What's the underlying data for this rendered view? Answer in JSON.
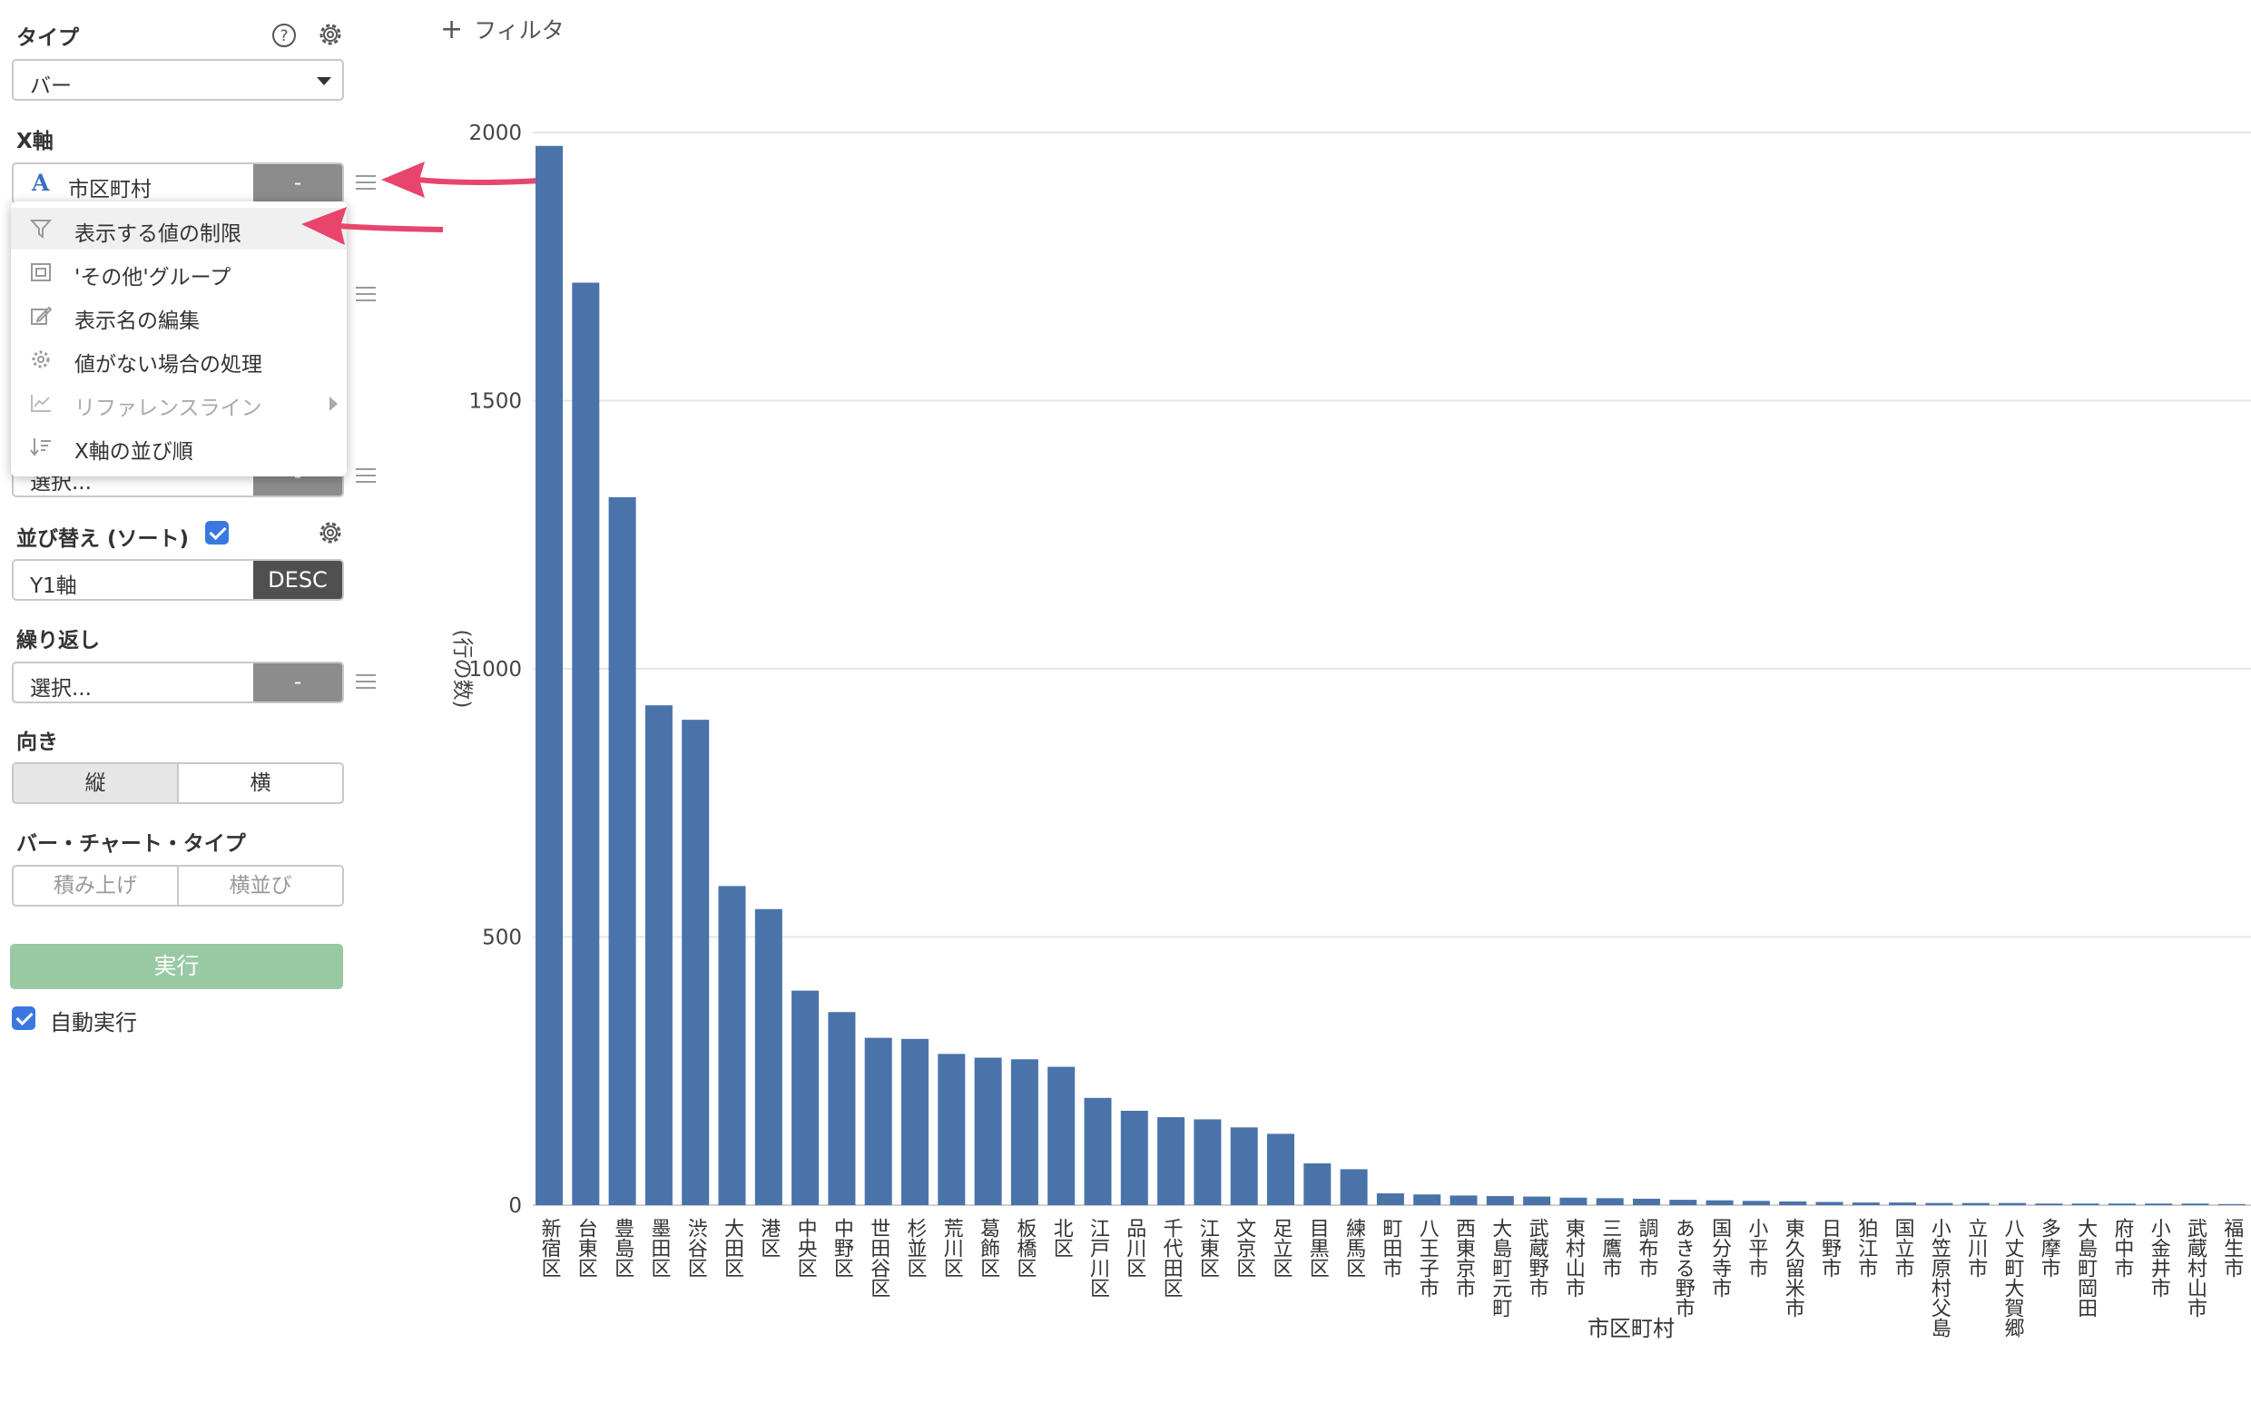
{
  "sidebar": {
    "type_section": {
      "title": "タイプ",
      "selected": "バー"
    },
    "xaxis_section": {
      "title": "X軸",
      "field_value": "市区町村",
      "field_type_glyph": "A",
      "field_option": "-"
    },
    "hidden_field": {
      "value": "選択...",
      "option": "-"
    },
    "sort_section": {
      "title": "並び替え (ソート)",
      "field_value": "Y1軸",
      "order": "DESC"
    },
    "repeat_section": {
      "title": "繰り返し",
      "placeholder": "選択...",
      "option": "-"
    },
    "orientation_section": {
      "title": "向き",
      "options": [
        "縦",
        "横"
      ],
      "selected": "縦"
    },
    "bar_type_section": {
      "title": "バー・チャート・タイプ",
      "options": [
        "積み上げ",
        "横並び"
      ]
    },
    "run_label": "実行",
    "auto_run_label": "自動実行"
  },
  "menu": {
    "items": [
      {
        "label": "表示する値の制限",
        "icon": "filter-icon",
        "highlighted": true
      },
      {
        "label": "'その他'グループ",
        "icon": "group-icon"
      },
      {
        "label": "表示名の編集",
        "icon": "edit-icon"
      },
      {
        "label": "値がない場合の処理",
        "icon": "gear-icon"
      },
      {
        "label": "リファレンスライン",
        "icon": "trend-line-icon",
        "disabled": true
      },
      {
        "label": "X軸の並び順",
        "icon": "sort-icon"
      }
    ]
  },
  "toolbar": {
    "filter_add": "フィルタ"
  },
  "colors": {
    "bar": "#4a73aa",
    "accent": "#3a78e0",
    "arrow": "#e8456c",
    "run_button": "#98c9a3"
  },
  "chart_data": {
    "type": "bar",
    "xlabel": "市区町村",
    "ylabel": "(行の数)",
    "ylim": [
      0,
      2000
    ],
    "yticks": [
      0,
      500,
      1000,
      1500,
      2000
    ],
    "grid": true,
    "categories": [
      "新宿区",
      "台東区",
      "豊島区",
      "墨田区",
      "渋谷区",
      "大田区",
      "港区",
      "中央区",
      "中野区",
      "世田谷区",
      "杉並区",
      "荒川区",
      "葛飾区",
      "板橋区",
      "北区",
      "江戸川区",
      "品川区",
      "千代田区",
      "江東区",
      "文京区",
      "足立区",
      "目黒区",
      "練馬区",
      "町田市",
      "八王子市",
      "西東京市",
      "大島町元町",
      "武蔵野市",
      "東村山市",
      "三鷹市",
      "調布市",
      "あきる野市",
      "国分寺市",
      "小平市",
      "東久留米市",
      "日野市",
      "狛江市",
      "国立市",
      "小笠原村父島",
      "立川市",
      "八丈町大賀郷",
      "多摩市",
      "大島町岡田",
      "府中市",
      "小金井市",
      "武蔵村山市",
      "福生市"
    ],
    "values": [
      1975,
      1720,
      1320,
      932,
      905,
      595,
      552,
      400,
      360,
      312,
      310,
      282,
      275,
      272,
      258,
      200,
      176,
      164,
      160,
      145,
      133,
      78,
      67,
      22,
      20,
      18,
      17,
      16,
      14,
      13,
      12,
      10,
      9,
      8,
      7,
      6,
      5,
      5,
      4,
      4,
      4,
      3,
      3,
      3,
      3,
      3,
      2
    ]
  }
}
